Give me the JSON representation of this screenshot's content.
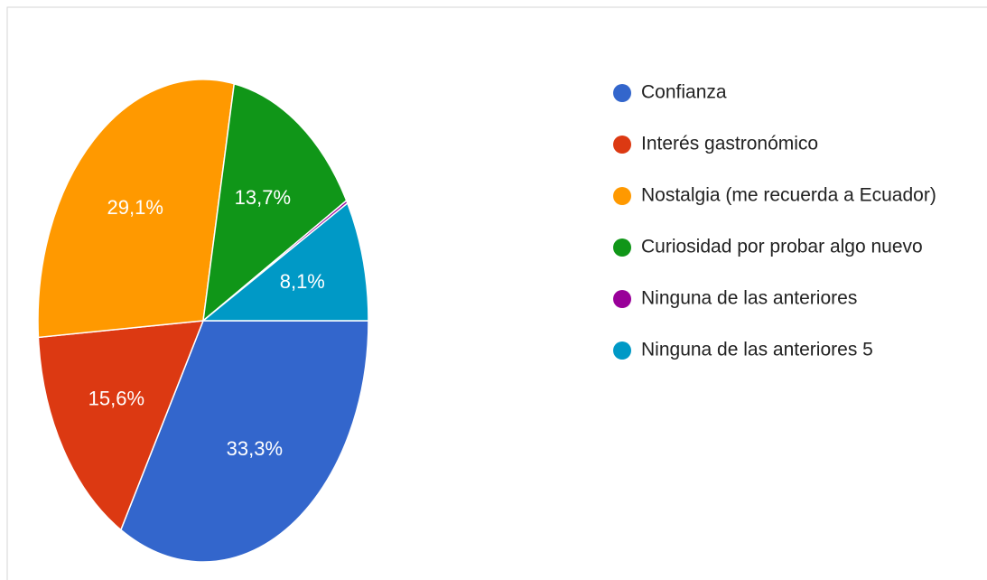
{
  "chart_data": {
    "type": "pie",
    "categories": [
      "Confianza",
      "Interés gastronómico",
      "Nostalgia (me recuerda a Ecuador)",
      "Curiosidad por probar algo nuevo",
      "Ninguna de las anteriores",
      "Ninguna de las anteriores 5"
    ],
    "values": [
      33.3,
      15.6,
      29.1,
      13.7,
      0.2,
      8.1
    ],
    "value_labels": [
      "33,3%",
      "15,6%",
      "29,1%",
      "13,7%",
      null,
      "8,1%"
    ],
    "colors": [
      "#3366cc",
      "#dc3912",
      "#ff9900",
      "#109618",
      "#990099",
      "#0099c6"
    ],
    "legend": "right"
  }
}
